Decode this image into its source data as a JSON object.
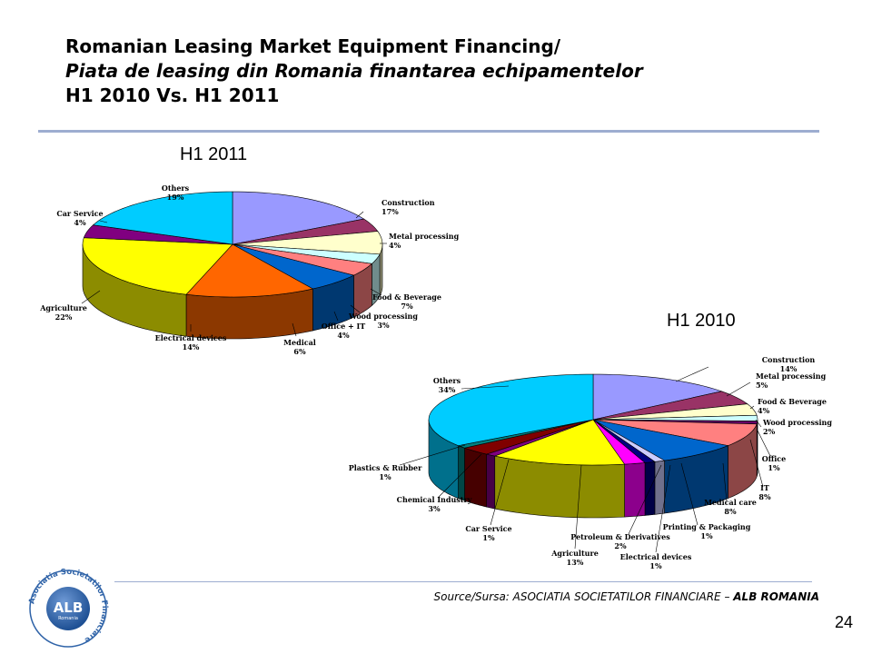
{
  "title": {
    "line1": "Romanian Leasing Market Equipment Financing/",
    "line2": "Piata de leasing din Romania finantarea echipamentelor",
    "line3": "H1 2010 Vs. H1 2011"
  },
  "source": {
    "prefix": "Source/Sursa: ASOCIATIA SOCIETATILOR FINANCIARE – ",
    "brand": "ALB ROMANIA"
  },
  "page_number": "24",
  "logo": {
    "ring_text": "Asociatia Societatilor Financiare",
    "name": "ALB",
    "sub": "Romania"
  },
  "colors": {
    "rule": "#9dadd0",
    "logo_blue": "#2f63a8"
  },
  "chart_data": [
    {
      "type": "pie",
      "title": "H1 2011",
      "slices": [
        {
          "label": "Construction",
          "value": 17,
          "pct": "17%",
          "color": "#9999ff"
        },
        {
          "label": "Metal processing",
          "value": 4,
          "pct": "4%",
          "color": "#993366"
        },
        {
          "label": "Food & Beverage",
          "value": 7,
          "pct": "7%",
          "color": "#ffffcc"
        },
        {
          "label": "Wood processing",
          "value": 3,
          "pct": "3%",
          "color": "#ccffff"
        },
        {
          "label": "Office + IT",
          "value": 4,
          "pct": "4%",
          "color": "#ff8080"
        },
        {
          "label": "Medical",
          "value": 6,
          "pct": "6%",
          "color": "#0066cc"
        },
        {
          "label": "Electrical devices",
          "value": 14,
          "pct": "14%",
          "color": "#ff6600"
        },
        {
          "label": "Agriculture",
          "value": 22,
          "pct": "22%",
          "color": "#ffff00"
        },
        {
          "label": "Car Service",
          "value": 4,
          "pct": "4%",
          "color": "#800080"
        },
        {
          "label": "Others",
          "value": 19,
          "pct": "19%",
          "color": "#00ccff"
        }
      ]
    },
    {
      "type": "pie",
      "title": "H1 2010",
      "slices": [
        {
          "label": "Construction",
          "value": 14,
          "pct": "14%",
          "color": "#9999ff"
        },
        {
          "label": "Metal processing",
          "value": 5,
          "pct": "5%",
          "color": "#993366"
        },
        {
          "label": "Food & Beverage",
          "value": 4,
          "pct": "4%",
          "color": "#ffffcc"
        },
        {
          "label": "Wood processing",
          "value": 2,
          "pct": "2%",
          "color": "#ccffff"
        },
        {
          "label": "Office",
          "value": 1,
          "pct": "1%",
          "color": "#660066"
        },
        {
          "label": "IT",
          "value": 8,
          "pct": "8%",
          "color": "#ff8080"
        },
        {
          "label": "Medical care",
          "value": 8,
          "pct": "8%",
          "color": "#0066cc"
        },
        {
          "label": "Printing & Packaging",
          "value": 1,
          "pct": "1%",
          "color": "#ccccff"
        },
        {
          "label": "Electrical devices",
          "value": 1,
          "pct": "1%",
          "color": "#000080"
        },
        {
          "label": "Petroleum & Derivatives",
          "value": 2,
          "pct": "2%",
          "color": "#ff00ff"
        },
        {
          "label": "Agriculture",
          "value": 13,
          "pct": "13%",
          "color": "#ffff00"
        },
        {
          "label": "Car Service",
          "value": 1,
          "pct": "1%",
          "color": "#800080"
        },
        {
          "label": "Chemical Industry",
          "value": 3,
          "pct": "3%",
          "color": "#800000"
        },
        {
          "label": "Plastics & Rubber",
          "value": 1,
          "pct": "1%",
          "color": "#008080"
        },
        {
          "label": "Others",
          "value": 34,
          "pct": "34%",
          "color": "#00ccff"
        }
      ]
    }
  ]
}
